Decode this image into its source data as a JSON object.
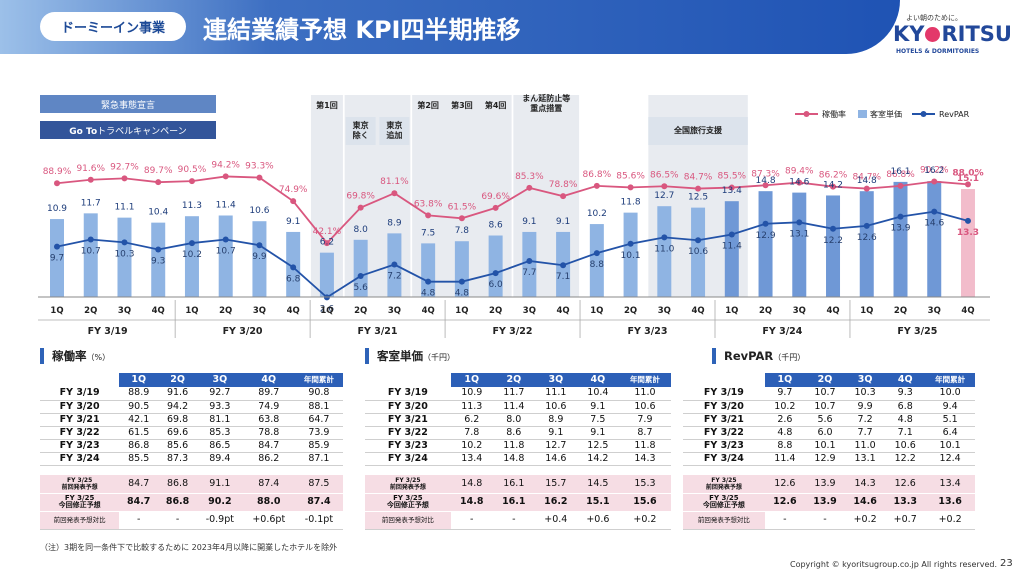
{
  "header": {
    "segment_label": "ドーミーイン事業",
    "title": "連結業績予想 KPI四半期推移"
  },
  "logo": {
    "tagline": "よい朝のために。",
    "name_left": "KY",
    "name_right": "RITSU",
    "sub": "HOTELS & DORMITORIES"
  },
  "events": {
    "emergency": "緊急事態宣言",
    "goto_prefix": "Go To",
    "goto_rest": "トラベルキャンペーン",
    "first": "第1回",
    "tokyo_ex": "東京\n除く",
    "tokyo_add": "東京\n追加",
    "second": "第2回",
    "third": "第3回",
    "fourth": "第4回",
    "manen": "まん延防止等\n重点措置",
    "zenkoku": "全国旅行支援"
  },
  "colors": {
    "occupancy": "#d9577f",
    "adr": "#8fb4e3",
    "adr_dark": "#6f98d6",
    "revpar": "#2353a8",
    "forecast_bar": "#f2bccb",
    "header_blue": "#1f53b4"
  },
  "chart_data": {
    "type": "bar",
    "title": "",
    "legend": {
      "placement": "top-right",
      "entries": [
        "稼働率",
        "客室単価",
        "RevPAR"
      ]
    },
    "quarters": [
      "1Q",
      "2Q",
      "3Q",
      "4Q",
      "1Q",
      "2Q",
      "3Q",
      "4Q",
      "1Q",
      "2Q",
      "3Q",
      "4Q",
      "1Q",
      "2Q",
      "3Q",
      "4Q",
      "1Q",
      "2Q",
      "3Q",
      "4Q",
      "1Q",
      "2Q",
      "3Q",
      "4Q",
      "1Q",
      "2Q",
      "3Q",
      "4Q"
    ],
    "fiscal_years": [
      "FY 3/19",
      "FY 3/20",
      "FY 3/21",
      "FY 3/22",
      "FY 3/23",
      "FY 3/24",
      "FY 3/25"
    ],
    "series": [
      {
        "name": "稼働率",
        "type": "line",
        "values": [
          "88.9%",
          "91.6%",
          "92.7%",
          "89.7%",
          "90.5%",
          "94.2%",
          "93.3%",
          "74.9%",
          "42.1%",
          "69.8%",
          "81.1%",
          "63.8%",
          "61.5%",
          "69.6%",
          "85.3%",
          "78.8%",
          "86.8%",
          "85.6%",
          "86.5%",
          "84.7%",
          "85.5%",
          "87.3%",
          "89.4%",
          "86.2%",
          "84.7%",
          "86.8%",
          "90.2%",
          "88.0%"
        ]
      },
      {
        "name": "客室単価",
        "type": "bar",
        "values": [
          10.9,
          11.7,
          11.1,
          10.4,
          11.3,
          11.4,
          10.6,
          9.1,
          6.2,
          8.0,
          8.9,
          7.5,
          7.8,
          8.6,
          9.1,
          9.1,
          10.2,
          11.8,
          12.7,
          12.5,
          13.4,
          14.8,
          14.6,
          14.2,
          14.8,
          16.1,
          16.2,
          15.1
        ]
      },
      {
        "name": "RevPAR",
        "type": "line",
        "values": [
          9.7,
          10.7,
          10.3,
          9.3,
          10.2,
          10.7,
          9.9,
          6.8,
          2.6,
          5.6,
          7.2,
          4.8,
          4.8,
          6.0,
          7.7,
          7.1,
          8.8,
          10.1,
          11.0,
          10.6,
          11.4,
          12.9,
          13.1,
          12.2,
          12.6,
          13.9,
          14.6,
          13.3
        ]
      }
    ],
    "ylim": [
      0,
      20
    ]
  },
  "tables": [
    {
      "title": "稼働率",
      "unit": "（%）",
      "headers": [
        "1Q",
        "2Q",
        "3Q",
        "4Q",
        "年間累計"
      ],
      "rows": [
        {
          "label": "FY 3/19",
          "values": [
            "88.9",
            "91.6",
            "92.7",
            "89.7",
            "90.8"
          ]
        },
        {
          "label": "FY 3/20",
          "values": [
            "90.5",
            "94.2",
            "93.3",
            "74.9",
            "88.1"
          ]
        },
        {
          "label": "FY 3/21",
          "values": [
            "42.1",
            "69.8",
            "81.1",
            "63.8",
            "64.7"
          ]
        },
        {
          "label": "FY 3/22",
          "values": [
            "61.5",
            "69.6",
            "85.3",
            "78.8",
            "73.9"
          ]
        },
        {
          "label": "FY 3/23",
          "values": [
            "86.8",
            "85.6",
            "86.5",
            "84.7",
            "85.9"
          ]
        },
        {
          "label": "FY 3/24",
          "values": [
            "85.5",
            "87.3",
            "89.4",
            "86.2",
            "87.1"
          ]
        }
      ],
      "prev": {
        "label_1": "FY 3/25",
        "label_2": "前回発表予想",
        "values": [
          "84.7",
          "86.8",
          "91.1",
          "87.4",
          "87.5"
        ]
      },
      "curr": {
        "label_1": "FY 3/25",
        "label_2": "今回修正予想",
        "values": [
          "84.7",
          "86.8",
          "90.2",
          "88.0",
          "87.4"
        ]
      },
      "diff": {
        "label": "前回発表予想対比",
        "values": [
          "-",
          "-",
          "-0.9pt",
          "+0.6pt",
          "-0.1pt"
        ]
      }
    },
    {
      "title": "客室単価",
      "unit": "（千円）",
      "headers": [
        "1Q",
        "2Q",
        "3Q",
        "4Q",
        "年間累計"
      ],
      "rows": [
        {
          "label": "FY 3/19",
          "values": [
            "10.9",
            "11.7",
            "11.1",
            "10.4",
            "11.0"
          ]
        },
        {
          "label": "FY 3/20",
          "values": [
            "11.3",
            "11.4",
            "10.6",
            "9.1",
            "10.6"
          ]
        },
        {
          "label": "FY 3/21",
          "values": [
            "6.2",
            "8.0",
            "8.9",
            "7.5",
            "7.9"
          ]
        },
        {
          "label": "FY 3/22",
          "values": [
            "7.8",
            "8.6",
            "9.1",
            "9.1",
            "8.7"
          ]
        },
        {
          "label": "FY 3/23",
          "values": [
            "10.2",
            "11.8",
            "12.7",
            "12.5",
            "11.8"
          ]
        },
        {
          "label": "FY 3/24",
          "values": [
            "13.4",
            "14.8",
            "14.6",
            "14.2",
            "14.3"
          ]
        }
      ],
      "prev": {
        "label_1": "FY 3/25",
        "label_2": "前回発表予想",
        "values": [
          "14.8",
          "16.1",
          "15.7",
          "14.5",
          "15.3"
        ]
      },
      "curr": {
        "label_1": "FY 3/25",
        "label_2": "今回修正予想",
        "values": [
          "14.8",
          "16.1",
          "16.2",
          "15.1",
          "15.6"
        ]
      },
      "diff": {
        "label": "前回発表予想対比",
        "values": [
          "-",
          "-",
          "+0.4",
          "+0.6",
          "+0.2"
        ]
      }
    },
    {
      "title": "RevPAR",
      "unit": "（千円）",
      "headers": [
        "1Q",
        "2Q",
        "3Q",
        "4Q",
        "年間累計"
      ],
      "rows": [
        {
          "label": "FY 3/19",
          "values": [
            "9.7",
            "10.7",
            "10.3",
            "9.3",
            "10.0"
          ]
        },
        {
          "label": "FY 3/20",
          "values": [
            "10.2",
            "10.7",
            "9.9",
            "6.8",
            "9.4"
          ]
        },
        {
          "label": "FY 3/21",
          "values": [
            "2.6",
            "5.6",
            "7.2",
            "4.8",
            "5.1"
          ]
        },
        {
          "label": "FY 3/22",
          "values": [
            "4.8",
            "6.0",
            "7.7",
            "7.1",
            "6.4"
          ]
        },
        {
          "label": "FY 3/23",
          "values": [
            "8.8",
            "10.1",
            "11.0",
            "10.6",
            "10.1"
          ]
        },
        {
          "label": "FY 3/24",
          "values": [
            "11.4",
            "12.9",
            "13.1",
            "12.2",
            "12.4"
          ]
        }
      ],
      "prev": {
        "label_1": "FY 3/25",
        "label_2": "前回発表予想",
        "values": [
          "12.6",
          "13.9",
          "14.3",
          "12.6",
          "13.4"
        ]
      },
      "curr": {
        "label_1": "FY 3/25",
        "label_2": "今回修正予想",
        "values": [
          "12.6",
          "13.9",
          "14.6",
          "13.3",
          "13.6"
        ]
      },
      "diff": {
        "label": "前回発表予想対比",
        "values": [
          "-",
          "-",
          "+0.2",
          "+0.7",
          "+0.2"
        ]
      }
    }
  ],
  "footer": {
    "note": "（注）3期を同一条件下で比較するために 2023年4月以降に開業したホテルを除外",
    "copyright": "Copyright © kyoritsugroup.co.jp All rights reserved.",
    "page": "23"
  }
}
